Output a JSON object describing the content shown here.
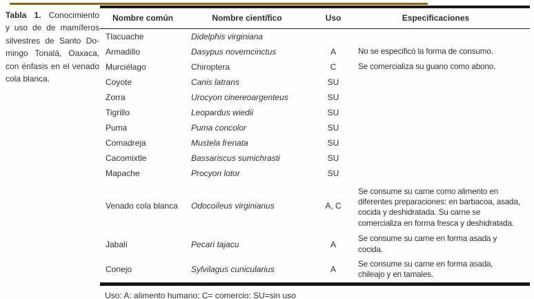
{
  "caption": {
    "label": "Tabla 1.",
    "lines": [
      "Conocimiento",
      "y uso de de mamíferos",
      "silvestres de Santo Do-",
      "mingo Tonalá, Oaxaca,",
      "con énfasis en el venado",
      "cola blanca."
    ]
  },
  "table": {
    "headers": [
      "Nombre común",
      "Nombre científico",
      "Uso",
      "Especificaciones"
    ],
    "rows": [
      {
        "common": "Tlacuache",
        "scientific": "Didelphis virginiana",
        "italic": true,
        "uso": "",
        "spec": ""
      },
      {
        "common": "Armadillo",
        "scientific": "Dasypus novemcinctus",
        "italic": true,
        "uso": "A",
        "spec": "No se especificó la forma de consumo."
      },
      {
        "common": "Murciélago",
        "scientific": "Chiroptera",
        "italic": false,
        "uso": "C",
        "spec": "Se comercializa su guano como abono."
      },
      {
        "common": "Coyote",
        "scientific": "Canis latrans",
        "italic": true,
        "uso": "SU",
        "spec": ""
      },
      {
        "common": "Zorra",
        "scientific": "Urocyon cinereoargenteus",
        "italic": true,
        "uso": "SU",
        "spec": ""
      },
      {
        "common": "Tigrillo",
        "scientific": "Leopardus wiedii",
        "italic": true,
        "uso": "SU",
        "spec": ""
      },
      {
        "common": "Puma",
        "scientific": "Puma concolor",
        "italic": true,
        "uso": "SU",
        "spec": ""
      },
      {
        "common": "Comadreja",
        "scientific": "Mustela frenata",
        "italic": true,
        "uso": "SU",
        "spec": ""
      },
      {
        "common": "Cacomixtle",
        "scientific": "Bassariscus sumichrasti",
        "italic": true,
        "uso": "SU",
        "spec": ""
      },
      {
        "common": "Mapache",
        "scientific": "Procyon lotor",
        "italic": true,
        "uso": "SU",
        "spec": ""
      },
      {
        "common": "Venado cola blanca",
        "scientific": "Odocoileus virginianus",
        "italic": true,
        "uso": "A, C",
        "spec": "Se consume su carne como alimento en diferentes preparaciones: en barbacoa, asada, cocida y deshidratada. Su carne se comercializa en forma fresca y deshidratada."
      },
      {
        "common": "Jabalí",
        "scientific": "Pecari tajacu",
        "italic": true,
        "uso": "A",
        "spec": "Se consume su carne en forma asada y cocida."
      },
      {
        "common": "Conejo",
        "scientific": "Sylvilagus cunicularius",
        "italic": true,
        "uso": "A",
        "spec": "Se consume su carne en forma asada, chileajo y en tamales."
      }
    ],
    "footnote": "Uso: A: alimento humano; C= comercio; SU=sin uso"
  },
  "colors": {
    "ornamental_rule": "#8a671f",
    "table_rule": "#181818",
    "text": "#33302c",
    "background": "#fefefe"
  }
}
